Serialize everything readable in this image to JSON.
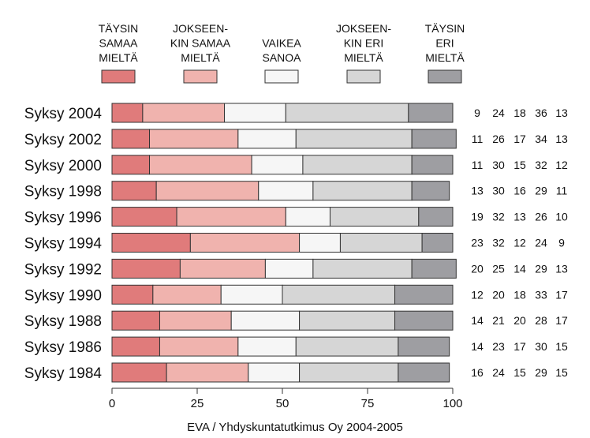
{
  "chart_data": {
    "type": "bar",
    "stacked": true,
    "orientation": "horizontal",
    "xlim": [
      0,
      100
    ],
    "x_ticks": [
      0,
      25,
      50,
      75,
      100
    ],
    "grid": false,
    "legend_position": "top",
    "categories": [
      "Syksy 2004",
      "Syksy 2002",
      "Syksy 2000",
      "Syksy 1998",
      "Syksy 1996",
      "Syksy 1994",
      "Syksy 1992",
      "Syksy 1990",
      "Syksy 1988",
      "Syksy 1986",
      "Syksy 1984"
    ],
    "series": [
      {
        "name": "TÄYSIN SAMAA MIELTÄ",
        "legend_lines": [
          "TÄYSIN",
          "SAMAA",
          "MIELTÄ"
        ],
        "color": "#e07b7b",
        "values": [
          9,
          11,
          11,
          13,
          19,
          23,
          20,
          12,
          14,
          14,
          16
        ]
      },
      {
        "name": "JOKSEEN- KIN SAMAA MIELTÄ",
        "legend_lines": [
          "JOKSEEN-",
          "KIN SAMAA",
          "MIELTÄ"
        ],
        "color": "#f0b3ae",
        "values": [
          24,
          26,
          30,
          30,
          32,
          32,
          25,
          20,
          21,
          23,
          24
        ]
      },
      {
        "name": "VAIKEA SANOA",
        "legend_lines": [
          "VAIKEA",
          "SANOA"
        ],
        "color": "#f6f6f6",
        "values": [
          18,
          17,
          15,
          16,
          13,
          12,
          14,
          18,
          20,
          17,
          15
        ]
      },
      {
        "name": "JOKSEEN- KIN ERI MIELTÄ",
        "legend_lines": [
          "JOKSEEN-",
          "KIN ERI",
          "MIELTÄ"
        ],
        "color": "#d6d6d6",
        "values": [
          36,
          34,
          32,
          29,
          26,
          24,
          29,
          33,
          28,
          30,
          29
        ]
      },
      {
        "name": "TÄYSIN ERI MIELTÄ",
        "legend_lines": [
          "TÄYSIN",
          "ERI",
          "MIELTÄ"
        ],
        "color": "#9e9ea2",
        "values": [
          13,
          13,
          12,
          11,
          10,
          9,
          13,
          17,
          17,
          15,
          15
        ]
      }
    ],
    "caption": "EVA / Yhdyskuntatutkimus Oy 2004-2005"
  }
}
